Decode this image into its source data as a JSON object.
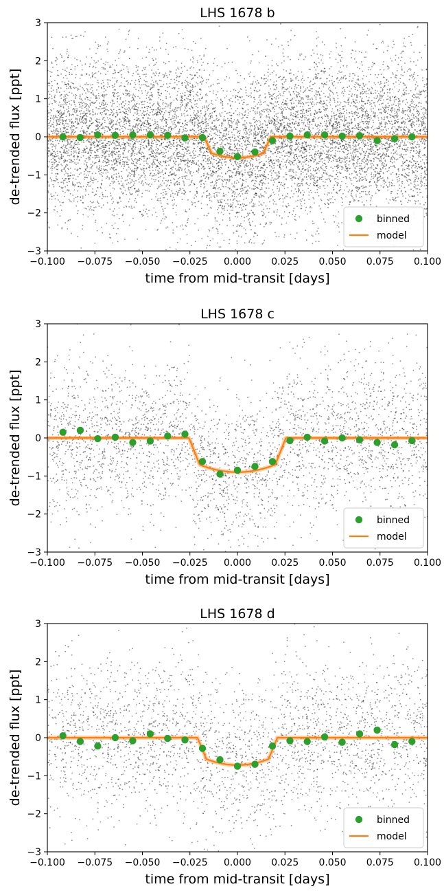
{
  "chart_data": [
    {
      "type": "scatter",
      "title": "LHS 1678 b",
      "xlabel": "time from mid-transit [days]",
      "ylabel": "de-trended flux [ppt]",
      "xlim": [
        -0.1,
        0.1
      ],
      "ylim": [
        -3,
        3
      ],
      "xticks": [
        "-0.100",
        "-0.075",
        "-0.050",
        "-0.025",
        "0.000",
        "0.025",
        "0.050",
        "0.075",
        "0.100"
      ],
      "yticks": [
        "3",
        "2",
        "1",
        "0",
        "−1",
        "−2",
        "−3"
      ],
      "legend": {
        "position": "lower-right",
        "entries": [
          "binned",
          "model"
        ]
      },
      "raw_points": {
        "description_only": false,
        "color": "#000000",
        "density": "high"
      },
      "binned": {
        "color": "#2ca02c",
        "x": [
          -0.0918,
          -0.0827,
          -0.0735,
          -0.0643,
          -0.0551,
          -0.0459,
          -0.0367,
          -0.0276,
          -0.0184,
          -0.0092,
          0.0,
          0.0092,
          0.0184,
          0.0276,
          0.0367,
          0.0459,
          0.0551,
          0.0643,
          0.0735,
          0.0827,
          0.0918
        ],
        "y": [
          0.0,
          -0.02,
          0.05,
          0.04,
          0.05,
          0.05,
          0.04,
          -0.03,
          -0.02,
          -0.38,
          -0.52,
          -0.4,
          -0.1,
          0.02,
          0.05,
          0.05,
          0.02,
          0.03,
          -0.1,
          -0.05,
          0.0
        ]
      },
      "model": {
        "color": "#ff7f0e",
        "baseline": 0.0,
        "depth": 0.55,
        "half_width": 0.0175
      }
    },
    {
      "type": "scatter",
      "title": "LHS 1678 c",
      "xlabel": "time from mid-transit [days]",
      "ylabel": "de-trended flux [ppt]",
      "xlim": [
        -0.1,
        0.1
      ],
      "ylim": [
        -3,
        3
      ],
      "xticks": [
        "-0.100",
        "-0.075",
        "-0.050",
        "-0.025",
        "0.000",
        "0.025",
        "0.050",
        "0.075",
        "0.100"
      ],
      "yticks": [
        "3",
        "2",
        "1",
        "0",
        "−1",
        "−2",
        "−3"
      ],
      "legend": {
        "position": "lower-right",
        "entries": [
          "binned",
          "model"
        ]
      },
      "raw_points": {
        "color": "#000000",
        "density": "medium"
      },
      "binned": {
        "color": "#2ca02c",
        "x": [
          -0.0918,
          -0.0827,
          -0.0735,
          -0.0643,
          -0.0551,
          -0.0459,
          -0.0367,
          -0.0276,
          -0.0184,
          -0.0092,
          0.0,
          0.0092,
          0.0184,
          0.0276,
          0.0367,
          0.0459,
          0.0551,
          0.0643,
          0.0735,
          0.0827,
          0.0918
        ],
        "y": [
          0.15,
          0.2,
          -0.02,
          0.02,
          -0.12,
          -0.08,
          0.05,
          0.1,
          -0.62,
          -0.95,
          -0.85,
          -0.75,
          -0.62,
          -0.07,
          0.02,
          -0.08,
          0.0,
          -0.05,
          -0.12,
          -0.18,
          -0.07
        ]
      },
      "model": {
        "color": "#ff7f0e",
        "baseline": 0.0,
        "depth": 0.9,
        "half_width": 0.0255
      }
    },
    {
      "type": "scatter",
      "title": "LHS 1678 d",
      "xlabel": "time from mid-transit [days]",
      "ylabel": "de-trended flux [ppt]",
      "xlim": [
        -0.1,
        0.1
      ],
      "ylim": [
        -3,
        3
      ],
      "xticks": [
        "-0.100",
        "-0.075",
        "-0.050",
        "-0.025",
        "0.000",
        "0.025",
        "0.050",
        "0.075",
        "0.100"
      ],
      "yticks": [
        "3",
        "2",
        "1",
        "0",
        "−1",
        "−2",
        "−3"
      ],
      "legend": {
        "position": "lower-right",
        "entries": [
          "binned",
          "model"
        ]
      },
      "raw_points": {
        "color": "#000000",
        "density": "medium"
      },
      "binned": {
        "color": "#2ca02c",
        "x": [
          -0.0918,
          -0.0827,
          -0.0735,
          -0.0643,
          -0.0551,
          -0.0459,
          -0.0367,
          -0.0276,
          -0.0184,
          -0.0092,
          0.0,
          0.0092,
          0.0184,
          0.0276,
          0.0367,
          0.0459,
          0.0551,
          0.0643,
          0.0735,
          0.0827,
          0.0918
        ],
        "y": [
          0.05,
          -0.1,
          -0.22,
          0.0,
          -0.08,
          0.1,
          -0.02,
          -0.06,
          -0.28,
          -0.58,
          -0.75,
          -0.7,
          -0.22,
          -0.08,
          -0.1,
          0.02,
          -0.12,
          0.1,
          0.2,
          -0.18,
          -0.1
        ]
      },
      "model": {
        "color": "#ff7f0e",
        "baseline": 0.0,
        "depth": 0.72,
        "half_width": 0.021
      }
    }
  ]
}
